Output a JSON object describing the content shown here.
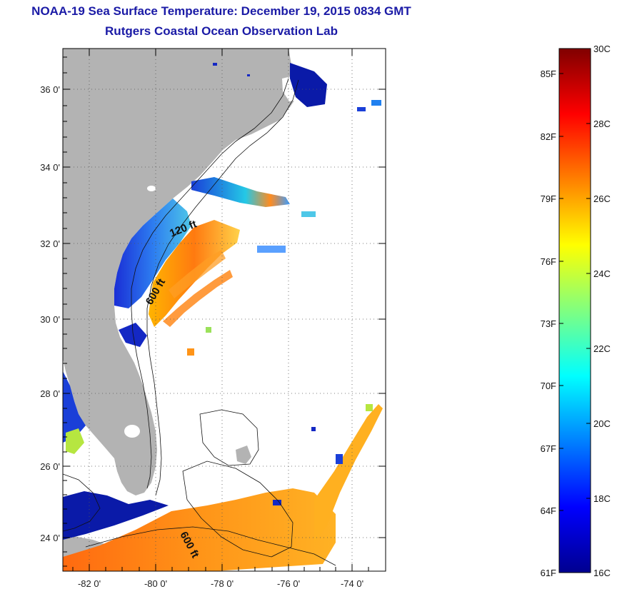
{
  "title": "NOAA-19 Sea Surface Temperature:  December 19, 2015 0834 GMT",
  "subtitle": "Rutgers Coastal Ocean Observation Lab",
  "map": {
    "lat_ticks": [
      "36 0'",
      "34 0'",
      "32 0'",
      "30 0'",
      "28 0'",
      "26 0'",
      "24 0'"
    ],
    "lon_ticks": [
      "-82 0'",
      "-80 0'",
      "-78 0'",
      "-76 0'",
      "-74 0'"
    ],
    "contour_labels": [
      "120 ft",
      "600 ft",
      "600 ft"
    ],
    "land_color": "#b3b3b3",
    "ocean_color": "#ffffff"
  },
  "colorbar": {
    "fahrenheit_labels": [
      "85F",
      "82F",
      "79F",
      "76F",
      "73F",
      "70F",
      "67F",
      "64F",
      "61F"
    ],
    "celsius_labels": [
      "30C",
      "28C",
      "26C",
      "24C",
      "22C",
      "20C",
      "18C",
      "16C"
    ],
    "colors": [
      "#00008f",
      "#0000ff",
      "#0080ff",
      "#00ffff",
      "#80ff80",
      "#ffff00",
      "#ff8000",
      "#ff0000",
      "#800000"
    ]
  }
}
